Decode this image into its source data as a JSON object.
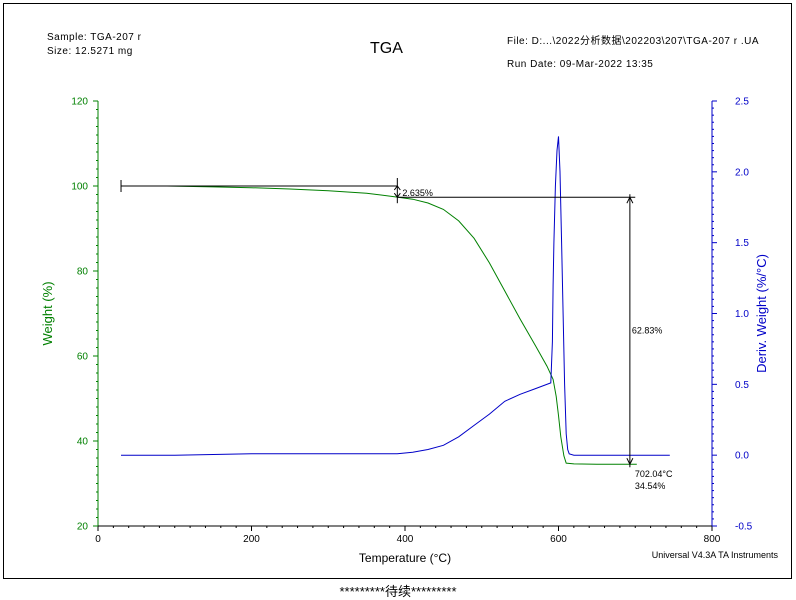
{
  "header": {
    "sample": "Sample: TGA-207 r",
    "size": "Size:  12.5271 mg",
    "title": "TGA",
    "file": "File: D:...\\2022分析数据\\202203\\207\\TGA-207 r .UA",
    "run_date": "Run Date: 09-Mar-2022 13:35"
  },
  "instrument": "Universal V4.3A TA Instruments",
  "footer": "*********待续*********",
  "colors": {
    "weight": "#008000",
    "deriv": "#0000c8",
    "axis_left": "#008000",
    "axis_right": "#0000c8",
    "text": "#000000"
  },
  "chart_data": {
    "type": "line",
    "title": "TGA",
    "xlabel": "Temperature (°C)",
    "ylabel_left": "Weight (%)",
    "ylabel_right": "Deriv. Weight (%/°C)",
    "xlim": [
      0,
      800
    ],
    "ylim_left": [
      20,
      120
    ],
    "ylim_right": [
      -0.5,
      2.5
    ],
    "x_ticks": [
      "0",
      "200",
      "400",
      "600",
      "800"
    ],
    "y_left_ticks": [
      "20",
      "40",
      "60",
      "80",
      "100",
      "120"
    ],
    "y_right_ticks": [
      "-0.5",
      "0.0",
      "0.5",
      "1.0",
      "1.5",
      "2.0",
      "2.5"
    ],
    "series": [
      {
        "name": "Weight (%)",
        "axis": "left",
        "x": [
          90,
          150,
          200,
          250,
          300,
          350,
          390,
          410,
          430,
          450,
          470,
          490,
          510,
          530,
          550,
          570,
          585,
          593,
          597,
          600,
          603,
          607,
          610,
          620,
          650,
          700,
          702
        ],
        "y": [
          100.0,
          99.8,
          99.6,
          99.3,
          98.9,
          98.3,
          97.4,
          96.9,
          96.0,
          94.5,
          91.8,
          87.7,
          81.9,
          75.3,
          68.7,
          62.4,
          57.6,
          54.5,
          50.5,
          46.0,
          41.0,
          36.5,
          34.8,
          34.6,
          34.55,
          34.54,
          34.54
        ]
      },
      {
        "name": "Deriv. Weight (%/°C)",
        "axis": "right",
        "x": [
          30,
          100,
          200,
          300,
          390,
          410,
          430,
          450,
          470,
          490,
          510,
          530,
          550,
          570,
          590,
          592,
          593,
          594,
          596,
          598,
          600,
          602,
          604,
          606,
          608,
          610,
          612,
          614,
          620,
          650,
          700,
          745
        ],
        "y": [
          0.0,
          0.0,
          0.01,
          0.01,
          0.01,
          0.02,
          0.04,
          0.07,
          0.13,
          0.21,
          0.29,
          0.38,
          0.43,
          0.47,
          0.51,
          0.8,
          1.2,
          1.5,
          1.9,
          2.15,
          2.25,
          2.0,
          1.5,
          1.0,
          0.5,
          0.15,
          0.04,
          0.01,
          0.0,
          0.0,
          0.0,
          0.0
        ]
      }
    ],
    "annotations": {
      "step1_label": "2.635%",
      "step2_label": "62.83%",
      "endpoint_temp": "702.04°C",
      "endpoint_weight": "34.54%",
      "step1": {
        "x_start": 30,
        "x_end": 390,
        "y_level": 100.0,
        "y_to": 97.365
      },
      "step2": {
        "x_start": 390,
        "x_end": 700,
        "y_level": 97.365,
        "y_to": 34.54,
        "x_vert": 693
      }
    }
  }
}
